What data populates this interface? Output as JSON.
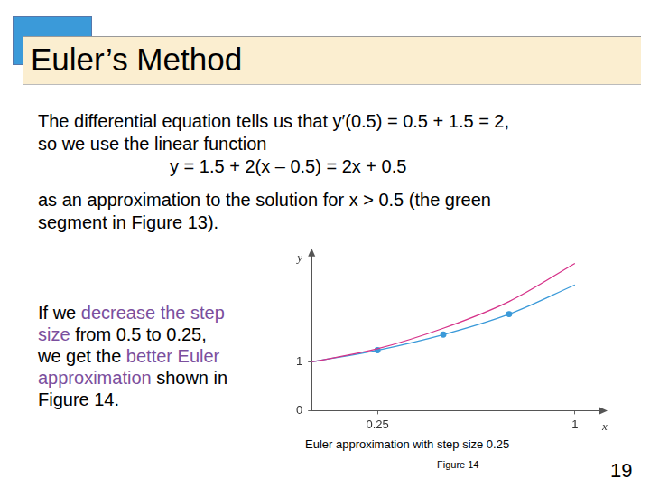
{
  "slide": {
    "title": "Euler’s Method",
    "intro": [
      "The differential equation tells us that y′(0.5) = 0.5 + 1.5 = 2,",
      "so we use the linear function"
    ],
    "formula": "y = 1.5 + 2(x – 0.5) = 2x + 0.5",
    "continuation": [
      "as an approximation to the solution for x > 0.5 (the green",
      "segment in Figure 13)."
    ],
    "paragraph2": [
      [
        {
          "text": "If we "
        },
        {
          "text": "decrease the step",
          "color": "#7b4f9e"
        }
      ],
      [
        {
          "text": "size",
          "color": "#7b4f9e"
        },
        {
          "text": " from 0.5 to 0.25,"
        }
      ],
      [
        {
          "text": "we get the "
        },
        {
          "text": "better Euler",
          "color": "#7b4f9e"
        }
      ],
      [
        {
          "text": "approximation",
          "color": "#7b4f9e"
        },
        {
          "text": " shown in"
        }
      ],
      [
        {
          "text": "Figure 14."
        }
      ]
    ],
    "caption": "Euler approximation with step size 0.25",
    "figure_label": "Figure 14",
    "page_number": "19"
  },
  "chart_data": {
    "type": "line",
    "x_label": "x",
    "y_label": "y",
    "x": [
      0,
      0.25,
      0.5,
      0.75,
      1
    ],
    "series": [
      {
        "color": "#d6338a",
        "values": [
          1,
          1.27,
          1.69,
          2.24,
          3.02
        ],
        "marker": "none"
      },
      {
        "color": "#3b9ad9",
        "values": [
          1,
          1.24,
          1.56,
          1.98,
          2.58
        ],
        "marker": "circle"
      }
    ],
    "xlim": [
      0,
      1.1
    ],
    "ylim": [
      0,
      3.2
    ],
    "xticks": [
      0.25,
      1
    ],
    "yticks": [
      0,
      1
    ],
    "grid": false
  }
}
